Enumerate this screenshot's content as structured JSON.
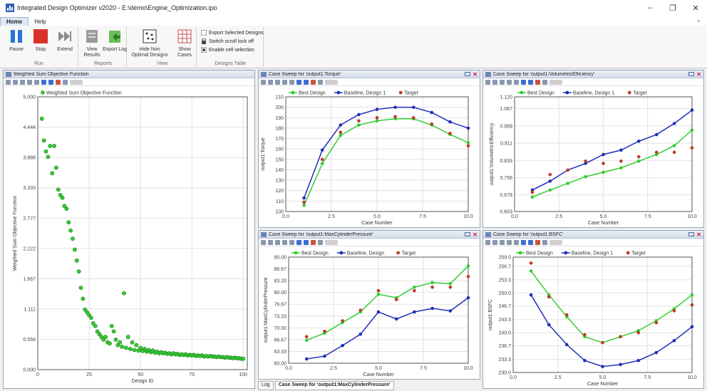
{
  "window": {
    "title": "Integrated Design Optimizer v2020 - E:\\demo\\Engine_Optimization.ipo",
    "minimize": "–",
    "maximize": "❐",
    "close": "✕"
  },
  "tabs": [
    {
      "label": "Home",
      "active": true
    },
    {
      "label": "Help",
      "active": false
    }
  ],
  "ribbon": {
    "collapse_label": "^",
    "run": {
      "label": "Run",
      "pause": "Pause",
      "stop": "Stop",
      "extend": "Extend"
    },
    "reports": {
      "label": "Reports",
      "view_results": "View Results",
      "export_log": "Export Log"
    },
    "view": {
      "label": "View",
      "hide_non_optimal": "Hide Non Optimal Designs",
      "show_cases": "Show Cases"
    },
    "designs_table": {
      "label": "Designs Table",
      "export_selected": "Export Selected Designs",
      "switch_scroll": "Switch scroll lock off",
      "enable_cell": "Enable cell selection"
    }
  },
  "colors": {
    "best": "#33cc33",
    "baseline": "#1f2fb8",
    "target": "#c0392b"
  },
  "panels": {
    "weighted": {
      "title": "Weighted Sum Objective Function"
    },
    "torque": {
      "title": "Case Sweep for 'output1:Torque'"
    },
    "volumetric": {
      "title": "Case Sweep for 'output1:VolumetricEfficiency'"
    },
    "pressure": {
      "title": "Case Sweep for 'output1:MaxCylinderPressure'"
    },
    "bsfc": {
      "title": "Case Sweep for 'output1:BSFC'"
    }
  },
  "bottom_tabs": [
    {
      "label": "Log",
      "active": false
    },
    {
      "label": "Case Sweep for 'output1:MaxCylinderPressure'",
      "active": true
    }
  ],
  "chart_data": [
    {
      "id": "weighted",
      "type": "scatter",
      "legend": [
        "Weighted Sum Objective Function"
      ],
      "xlabel": "Design ID",
      "ylabel": "Weighted Sum Objective Function",
      "xlim": [
        0,
        102
      ],
      "ylim": [
        0.0,
        5.0
      ],
      "xticks": [
        0,
        25,
        50,
        75,
        100
      ],
      "xtick_labels": [
        "0",
        "25",
        "50",
        "75",
        "100"
      ],
      "yticks": [
        0.0,
        0.556,
        1.111,
        1.667,
        2.222,
        2.777,
        3.333,
        3.888,
        4.444,
        5.0
      ],
      "ytick_labels": [
        "0.000",
        "0.556",
        "1.111",
        "1.667",
        "2.222",
        "2.777",
        "3.333",
        "3.888",
        "4.444",
        "5.000"
      ],
      "points": [
        [
          2,
          4.6
        ],
        [
          3,
          4.2
        ],
        [
          4,
          4.0
        ],
        [
          5,
          3.9
        ],
        [
          6,
          4.1
        ],
        [
          7,
          3.6
        ],
        [
          8,
          4.1
        ],
        [
          9,
          3.7
        ],
        [
          10,
          3.3
        ],
        [
          11,
          3.2
        ],
        [
          12,
          3.15
        ],
        [
          13,
          3.0
        ],
        [
          14,
          2.95
        ],
        [
          15,
          2.7
        ],
        [
          16,
          2.55
        ],
        [
          17,
          2.4
        ],
        [
          18,
          2.2
        ],
        [
          19,
          2.0
        ],
        [
          20,
          1.8
        ],
        [
          21,
          1.5
        ],
        [
          22,
          1.3
        ],
        [
          23,
          1.1
        ],
        [
          24,
          1.05
        ],
        [
          25,
          1.0
        ],
        [
          26,
          0.95
        ],
        [
          27,
          0.85
        ],
        [
          28,
          0.8
        ],
        [
          29,
          0.7
        ],
        [
          30,
          0.65
        ],
        [
          31,
          0.6
        ],
        [
          32,
          0.55
        ],
        [
          33,
          0.6
        ],
        [
          34,
          0.5
        ],
        [
          35,
          0.48
        ],
        [
          36,
          0.8
        ],
        [
          37,
          0.7
        ],
        [
          38,
          0.55
        ],
        [
          39,
          0.45
        ],
        [
          40,
          0.5
        ],
        [
          41,
          0.42
        ],
        [
          42,
          1.4
        ],
        [
          43,
          0.4
        ],
        [
          44,
          0.6
        ],
        [
          45,
          0.38
        ],
        [
          46,
          0.5
        ],
        [
          47,
          0.36
        ],
        [
          48,
          0.45
        ],
        [
          49,
          0.35
        ],
        [
          50,
          0.4
        ],
        [
          51,
          0.34
        ],
        [
          52,
          0.38
        ],
        [
          53,
          0.33
        ],
        [
          54,
          0.36
        ],
        [
          55,
          0.32
        ],
        [
          56,
          0.35
        ],
        [
          57,
          0.31
        ],
        [
          58,
          0.33
        ],
        [
          59,
          0.3
        ],
        [
          60,
          0.32
        ],
        [
          61,
          0.3
        ],
        [
          62,
          0.31
        ],
        [
          63,
          0.29
        ],
        [
          64,
          0.3
        ],
        [
          65,
          0.28
        ],
        [
          66,
          0.3
        ],
        [
          67,
          0.28
        ],
        [
          68,
          0.29
        ],
        [
          69,
          0.27
        ],
        [
          70,
          0.28
        ],
        [
          71,
          0.27
        ],
        [
          72,
          0.28
        ],
        [
          73,
          0.26
        ],
        [
          74,
          0.27
        ],
        [
          75,
          0.26
        ],
        [
          76,
          0.27
        ],
        [
          77,
          0.25
        ],
        [
          78,
          0.26
        ],
        [
          79,
          0.25
        ],
        [
          80,
          0.26
        ],
        [
          81,
          0.24
        ],
        [
          82,
          0.25
        ],
        [
          83,
          0.24
        ],
        [
          84,
          0.25
        ],
        [
          85,
          0.24
        ],
        [
          86,
          0.24
        ],
        [
          87,
          0.23
        ],
        [
          88,
          0.24
        ],
        [
          89,
          0.23
        ],
        [
          90,
          0.23
        ],
        [
          91,
          0.22
        ],
        [
          92,
          0.23
        ],
        [
          93,
          0.22
        ],
        [
          94,
          0.22
        ],
        [
          95,
          0.21
        ],
        [
          96,
          0.22
        ],
        [
          97,
          0.21
        ],
        [
          98,
          0.21
        ],
        [
          99,
          0.2
        ],
        [
          100,
          0.2
        ]
      ]
    },
    {
      "id": "torque",
      "type": "line",
      "legend": [
        "Best Design",
        "Baseline, Design 1",
        "Target"
      ],
      "xlabel": "Case Number",
      "ylabel": "output1:Torque",
      "xlim": [
        0,
        10
      ],
      "ylim": [
        100,
        210
      ],
      "xticks": [
        0,
        2.5,
        5,
        7.5,
        10
      ],
      "xtick_labels": [
        "0.0",
        "2.5",
        "5.0",
        "7.5",
        "10.0"
      ],
      "yticks": [
        100,
        110,
        120,
        130,
        140,
        150,
        160,
        170,
        180,
        190,
        200,
        210
      ],
      "ytick_labels": [
        "100",
        "110",
        "120",
        "130",
        "140",
        "150",
        "160",
        "170",
        "180",
        "190",
        "200",
        "210"
      ],
      "x": [
        1,
        2,
        3,
        4,
        5,
        6,
        7,
        8,
        9,
        10
      ],
      "series": [
        {
          "name": "Best Design",
          "values": [
            106,
            146,
            173,
            183,
            187,
            189,
            189,
            183,
            174,
            166
          ]
        },
        {
          "name": "Baseline, Design 1",
          "values": [
            113,
            159,
            183,
            193,
            198,
            200,
            200,
            195,
            186,
            180
          ]
        },
        {
          "name": "Target",
          "marker_only": true,
          "values": [
            109,
            150,
            176,
            187,
            190,
            191,
            190,
            184,
            175,
            163
          ]
        }
      ]
    },
    {
      "id": "volumetric",
      "type": "line",
      "legend": [
        "Best Design",
        "Baseline, Design 1",
        "Target"
      ],
      "xlabel": "Case Number",
      "ylabel": "output1:VolumetricEfficiency",
      "xlim": [
        0,
        10
      ],
      "ylim": [
        0.603,
        1.12
      ],
      "xticks": [
        0,
        2.5,
        5,
        7.5,
        10
      ],
      "xtick_labels": [
        "0.0",
        "2.5",
        "5.0",
        "7.5",
        "10.0"
      ],
      "yticks": [
        0.603,
        0.678,
        0.756,
        0.833,
        0.911,
        0.989,
        1.067,
        1.12
      ],
      "ytick_labels": [
        "0.603",
        "0.678",
        "0.756",
        "0.833",
        "0.911",
        "0.989",
        "1.067",
        "1.120"
      ],
      "x": [
        1,
        2,
        3,
        4,
        5,
        6,
        7,
        8,
        9,
        10
      ],
      "series": [
        {
          "name": "Best Design",
          "values": [
            0.668,
            0.7,
            0.73,
            0.76,
            0.78,
            0.8,
            0.83,
            0.86,
            0.9,
            0.97
          ]
        },
        {
          "name": "Baseline, Design 1",
          "values": [
            0.7,
            0.74,
            0.79,
            0.82,
            0.86,
            0.88,
            0.92,
            0.95,
            1.0,
            1.06
          ]
        },
        {
          "name": "Target",
          "marker_only": true,
          "values": [
            0.69,
            0.77,
            0.79,
            0.83,
            0.82,
            0.83,
            0.85,
            0.87,
            0.87,
            0.89
          ]
        }
      ]
    },
    {
      "id": "pressure",
      "type": "line",
      "legend": [
        "Best Design",
        "Baseline, Design",
        "Target"
      ],
      "xlabel": "Case Number",
      "ylabel": "output1:MaxCylinderPressure",
      "xlim": [
        0,
        10
      ],
      "ylim": [
        60.0,
        90.0
      ],
      "xticks": [
        0,
        2.5,
        5,
        7.5,
        10
      ],
      "xtick_labels": [
        "0.0",
        "2.5",
        "5.0",
        "7.5",
        "10.0"
      ],
      "yticks": [
        60.0,
        63.33,
        66.67,
        70.0,
        73.33,
        76.67,
        80.0,
        83.33,
        86.67,
        90.0
      ],
      "ytick_labels": [
        "60.00",
        "63.33",
        "66.67",
        "70.00",
        "73.33",
        "76.67",
        "80.00",
        "83.33",
        "86.67",
        "90.00"
      ],
      "x": [
        1,
        2,
        3,
        4,
        5,
        6,
        7,
        8,
        9,
        10
      ],
      "series": [
        {
          "name": "Best Design",
          "values": [
            66.5,
            68.5,
            71.5,
            74.5,
            79.5,
            78.5,
            81.5,
            82.8,
            82.5,
            87.5
          ]
        },
        {
          "name": "Baseline, Design",
          "values": [
            61.2,
            62.0,
            65.0,
            68.2,
            74.5,
            72.5,
            74.5,
            75.5,
            74.8,
            78.5
          ]
        },
        {
          "name": "Target",
          "marker_only": true,
          "values": [
            67.5,
            69.0,
            72.0,
            75.0,
            80.5,
            78.0,
            80.5,
            81.5,
            81.5,
            84.5
          ]
        }
      ]
    },
    {
      "id": "bsfc",
      "type": "line",
      "legend": [
        "Best Design",
        "Baseline, Design 1",
        "Target"
      ],
      "xlabel": "Case Number",
      "ylabel": "output1:BSFC",
      "xlim": [
        0,
        10
      ],
      "ylim": [
        230.0,
        259.0
      ],
      "xticks": [
        0,
        2.5,
        5,
        7.5,
        10
      ],
      "xtick_labels": [
        "0.0",
        "2.5",
        "5.0",
        "7.5",
        "10.0"
      ],
      "yticks": [
        230.0,
        233.3,
        236.7,
        240.0,
        243.3,
        246.7,
        250.0,
        253.3,
        256.7,
        259.0
      ],
      "ytick_labels": [
        "230.0",
        "233.3",
        "236.7",
        "240.0",
        "243.3",
        "246.7",
        "250.0",
        "253.3",
        "256.7",
        "259.0"
      ],
      "x": [
        1,
        2,
        3,
        4,
        5,
        6,
        7,
        8,
        9,
        10
      ],
      "series": [
        {
          "name": "Best Design",
          "values": [
            255.5,
            249.5,
            244.0,
            239.0,
            237.5,
            239.0,
            240.5,
            243.0,
            246.0,
            249.5
          ]
        },
        {
          "name": "Baseline, Design 1",
          "values": [
            249.5,
            242.0,
            237.0,
            233.0,
            231.5,
            232.0,
            233.0,
            235.0,
            238.0,
            241.5
          ]
        },
        {
          "name": "Target",
          "marker_only": true,
          "values": [
            257.5,
            249.0,
            244.5,
            239.5,
            237.5,
            239.0,
            240.0,
            242.5,
            245.5,
            247.0
          ]
        }
      ]
    }
  ]
}
